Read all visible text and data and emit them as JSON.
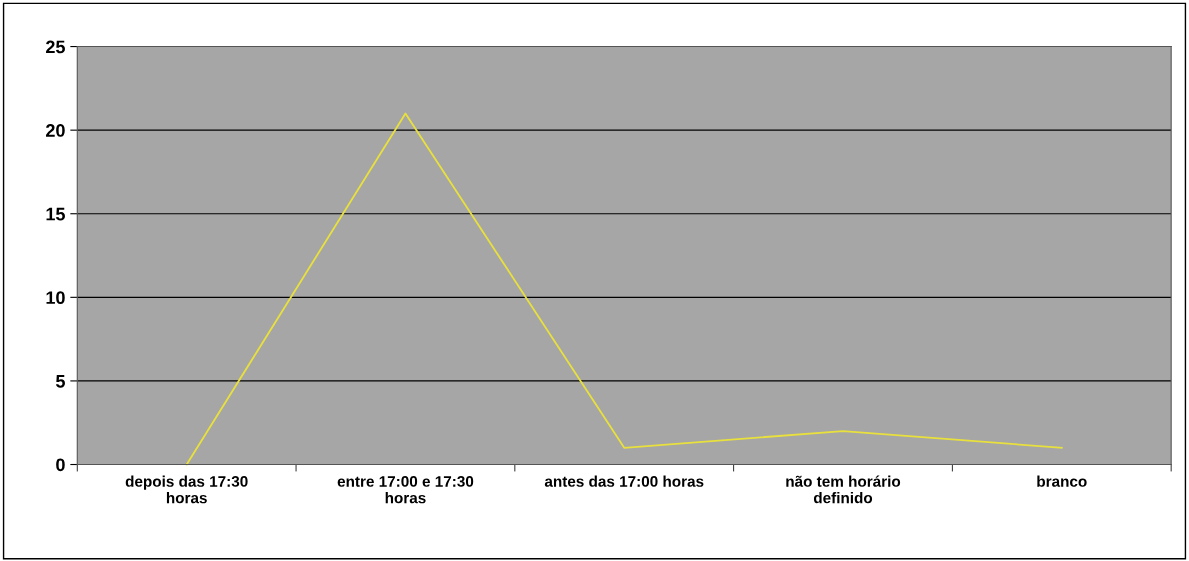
{
  "chart_data": {
    "type": "line",
    "categories": [
      "depois das 17:30\nhoras",
      "entre 17:00 e 17:30\nhoras",
      "antes das 17:00 horas",
      "não tem horário\ndefinido",
      "branco"
    ],
    "series": [
      {
        "color": "#e8e03c",
        "values": [
          0,
          21,
          1,
          2,
          1
        ]
      }
    ],
    "ylim": [
      0,
      25
    ],
    "yticks": [
      0,
      5,
      10,
      15,
      20,
      25
    ],
    "grid": "y",
    "marker": "none",
    "line_style": "solid"
  }
}
